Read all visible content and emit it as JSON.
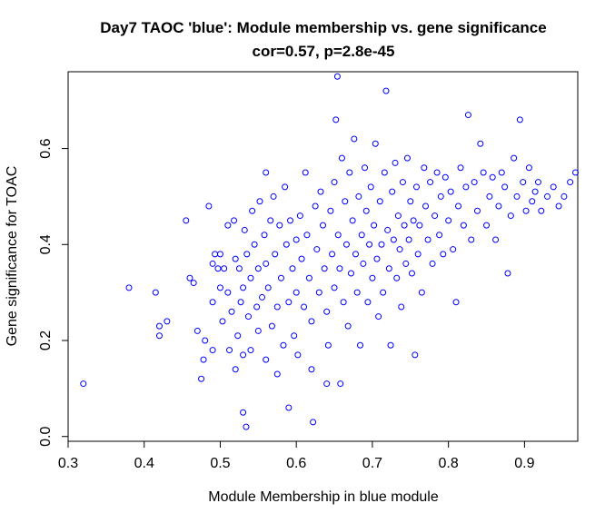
{
  "chart_data": {
    "type": "scatter",
    "title": "Day7 TAOC 'blue': Module membership vs. gene significance",
    "subtitle": "cor=0.57, p=2.8e-45",
    "xlabel": "Module Membership in blue module",
    "ylabel": "Gene significance for TOAC",
    "xlim": [
      0.3,
      0.97
    ],
    "ylim": [
      -0.01,
      0.76
    ],
    "x_ticks": [
      0.3,
      0.4,
      0.5,
      0.6,
      0.7,
      0.8,
      0.9
    ],
    "x_tick_labels": [
      "0.3",
      "0.4",
      "0.5",
      "0.6",
      "0.7",
      "0.8",
      "0.9"
    ],
    "y_ticks": [
      0.0,
      0.2,
      0.4,
      0.6
    ],
    "y_tick_labels": [
      "0.0",
      "0.2",
      "0.4",
      "0.6"
    ],
    "grid": false,
    "marker": "open-circle",
    "point_color": "#0000ff",
    "points": [
      [
        0.32,
        0.11
      ],
      [
        0.38,
        0.31
      ],
      [
        0.415,
        0.3
      ],
      [
        0.42,
        0.23
      ],
      [
        0.42,
        0.21
      ],
      [
        0.43,
        0.24
      ],
      [
        0.455,
        0.45
      ],
      [
        0.46,
        0.33
      ],
      [
        0.465,
        0.32
      ],
      [
        0.47,
        0.22
      ],
      [
        0.475,
        0.12
      ],
      [
        0.478,
        0.16
      ],
      [
        0.48,
        0.2
      ],
      [
        0.485,
        0.48
      ],
      [
        0.49,
        0.36
      ],
      [
        0.49,
        0.28
      ],
      [
        0.49,
        0.18
      ],
      [
        0.493,
        0.38
      ],
      [
        0.497,
        0.35
      ],
      [
        0.5,
        0.38
      ],
      [
        0.5,
        0.31
      ],
      [
        0.503,
        0.24
      ],
      [
        0.505,
        0.35
      ],
      [
        0.51,
        0.44
      ],
      [
        0.51,
        0.3
      ],
      [
        0.512,
        0.18
      ],
      [
        0.515,
        0.26
      ],
      [
        0.518,
        0.45
      ],
      [
        0.52,
        0.37
      ],
      [
        0.52,
        0.14
      ],
      [
        0.523,
        0.21
      ],
      [
        0.525,
        0.35
      ],
      [
        0.527,
        0.28
      ],
      [
        0.53,
        0.31
      ],
      [
        0.53,
        0.17
      ],
      [
        0.53,
        0.05
      ],
      [
        0.532,
        0.43
      ],
      [
        0.534,
        0.02
      ],
      [
        0.535,
        0.38
      ],
      [
        0.537,
        0.25
      ],
      [
        0.54,
        0.33
      ],
      [
        0.54,
        0.18
      ],
      [
        0.542,
        0.47
      ],
      [
        0.545,
        0.4
      ],
      [
        0.548,
        0.27
      ],
      [
        0.55,
        0.35
      ],
      [
        0.55,
        0.22
      ],
      [
        0.552,
        0.49
      ],
      [
        0.555,
        0.29
      ],
      [
        0.558,
        0.42
      ],
      [
        0.56,
        0.55
      ],
      [
        0.56,
        0.36
      ],
      [
        0.56,
        0.16
      ],
      [
        0.563,
        0.31
      ],
      [
        0.566,
        0.45
      ],
      [
        0.568,
        0.23
      ],
      [
        0.57,
        0.5
      ],
      [
        0.572,
        0.38
      ],
      [
        0.575,
        0.27
      ],
      [
        0.575,
        0.13
      ],
      [
        0.578,
        0.44
      ],
      [
        0.58,
        0.33
      ],
      [
        0.583,
        0.19
      ],
      [
        0.585,
        0.52
      ],
      [
        0.587,
        0.4
      ],
      [
        0.59,
        0.28
      ],
      [
        0.59,
        0.06
      ],
      [
        0.592,
        0.45
      ],
      [
        0.595,
        0.35
      ],
      [
        0.597,
        0.21
      ],
      [
        0.6,
        0.41
      ],
      [
        0.6,
        0.3
      ],
      [
        0.602,
        0.17
      ],
      [
        0.605,
        0.46
      ],
      [
        0.607,
        0.37
      ],
      [
        0.61,
        0.27
      ],
      [
        0.612,
        0.55
      ],
      [
        0.614,
        0.42
      ],
      [
        0.617,
        0.33
      ],
      [
        0.62,
        0.24
      ],
      [
        0.62,
        0.14
      ],
      [
        0.622,
        0.03
      ],
      [
        0.625,
        0.48
      ],
      [
        0.627,
        0.39
      ],
      [
        0.63,
        0.3
      ],
      [
        0.632,
        0.51
      ],
      [
        0.635,
        0.44
      ],
      [
        0.637,
        0.35
      ],
      [
        0.64,
        0.26
      ],
      [
        0.64,
        0.11
      ],
      [
        0.642,
        0.19
      ],
      [
        0.645,
        0.47
      ],
      [
        0.647,
        0.38
      ],
      [
        0.65,
        0.53
      ],
      [
        0.65,
        0.31
      ],
      [
        0.652,
        0.66
      ],
      [
        0.654,
        0.75
      ],
      [
        0.655,
        0.42
      ],
      [
        0.657,
        0.35
      ],
      [
        0.658,
        0.11
      ],
      [
        0.66,
        0.58
      ],
      [
        0.662,
        0.28
      ],
      [
        0.664,
        0.49
      ],
      [
        0.666,
        0.4
      ],
      [
        0.668,
        0.23
      ],
      [
        0.67,
        0.55
      ],
      [
        0.672,
        0.34
      ],
      [
        0.674,
        0.45
      ],
      [
        0.676,
        0.62
      ],
      [
        0.678,
        0.38
      ],
      [
        0.68,
        0.3
      ],
      [
        0.682,
        0.5
      ],
      [
        0.684,
        0.19
      ],
      [
        0.686,
        0.42
      ],
      [
        0.688,
        0.36
      ],
      [
        0.69,
        0.56
      ],
      [
        0.692,
        0.47
      ],
      [
        0.694,
        0.28
      ],
      [
        0.696,
        0.4
      ],
      [
        0.698,
        0.52
      ],
      [
        0.7,
        0.33
      ],
      [
        0.702,
        0.44
      ],
      [
        0.704,
        0.61
      ],
      [
        0.706,
        0.37
      ],
      [
        0.708,
        0.25
      ],
      [
        0.71,
        0.49
      ],
      [
        0.712,
        0.4
      ],
      [
        0.714,
        0.3
      ],
      [
        0.716,
        0.55
      ],
      [
        0.718,
        0.72
      ],
      [
        0.72,
        0.43
      ],
      [
        0.722,
        0.35
      ],
      [
        0.724,
        0.19
      ],
      [
        0.726,
        0.51
      ],
      [
        0.728,
        0.41
      ],
      [
        0.73,
        0.57
      ],
      [
        0.732,
        0.33
      ],
      [
        0.734,
        0.46
      ],
      [
        0.736,
        0.39
      ],
      [
        0.738,
        0.27
      ],
      [
        0.74,
        0.53
      ],
      [
        0.742,
        0.44
      ],
      [
        0.744,
        0.36
      ],
      [
        0.746,
        0.58
      ],
      [
        0.748,
        0.41
      ],
      [
        0.75,
        0.49
      ],
      [
        0.752,
        0.34
      ],
      [
        0.754,
        0.45
      ],
      [
        0.756,
        0.17
      ],
      [
        0.758,
        0.52
      ],
      [
        0.76,
        0.38
      ],
      [
        0.762,
        0.44
      ],
      [
        0.765,
        0.3
      ],
      [
        0.768,
        0.56
      ],
      [
        0.77,
        0.48
      ],
      [
        0.773,
        0.41
      ],
      [
        0.776,
        0.53
      ],
      [
        0.779,
        0.36
      ],
      [
        0.782,
        0.46
      ],
      [
        0.785,
        0.55
      ],
      [
        0.788,
        0.42
      ],
      [
        0.79,
        0.5
      ],
      [
        0.793,
        0.38
      ],
      [
        0.796,
        0.54
      ],
      [
        0.8,
        0.45
      ],
      [
        0.803,
        0.51
      ],
      [
        0.806,
        0.39
      ],
      [
        0.81,
        0.28
      ],
      [
        0.813,
        0.48
      ],
      [
        0.816,
        0.56
      ],
      [
        0.82,
        0.44
      ],
      [
        0.823,
        0.52
      ],
      [
        0.826,
        0.67
      ],
      [
        0.83,
        0.41
      ],
      [
        0.834,
        0.53
      ],
      [
        0.838,
        0.47
      ],
      [
        0.842,
        0.61
      ],
      [
        0.846,
        0.55
      ],
      [
        0.85,
        0.44
      ],
      [
        0.854,
        0.5
      ],
      [
        0.858,
        0.54
      ],
      [
        0.862,
        0.41
      ],
      [
        0.866,
        0.48
      ],
      [
        0.87,
        0.55
      ],
      [
        0.874,
        0.52
      ],
      [
        0.878,
        0.34
      ],
      [
        0.882,
        0.46
      ],
      [
        0.886,
        0.58
      ],
      [
        0.89,
        0.5
      ],
      [
        0.894,
        0.66
      ],
      [
        0.898,
        0.53
      ],
      [
        0.902,
        0.47
      ],
      [
        0.906,
        0.56
      ],
      [
        0.91,
        0.49
      ],
      [
        0.914,
        0.51
      ],
      [
        0.918,
        0.53
      ],
      [
        0.922,
        0.47
      ],
      [
        0.93,
        0.5
      ],
      [
        0.938,
        0.52
      ],
      [
        0.945,
        0.48
      ],
      [
        0.952,
        0.5
      ],
      [
        0.96,
        0.53
      ],
      [
        0.967,
        0.55
      ]
    ]
  }
}
